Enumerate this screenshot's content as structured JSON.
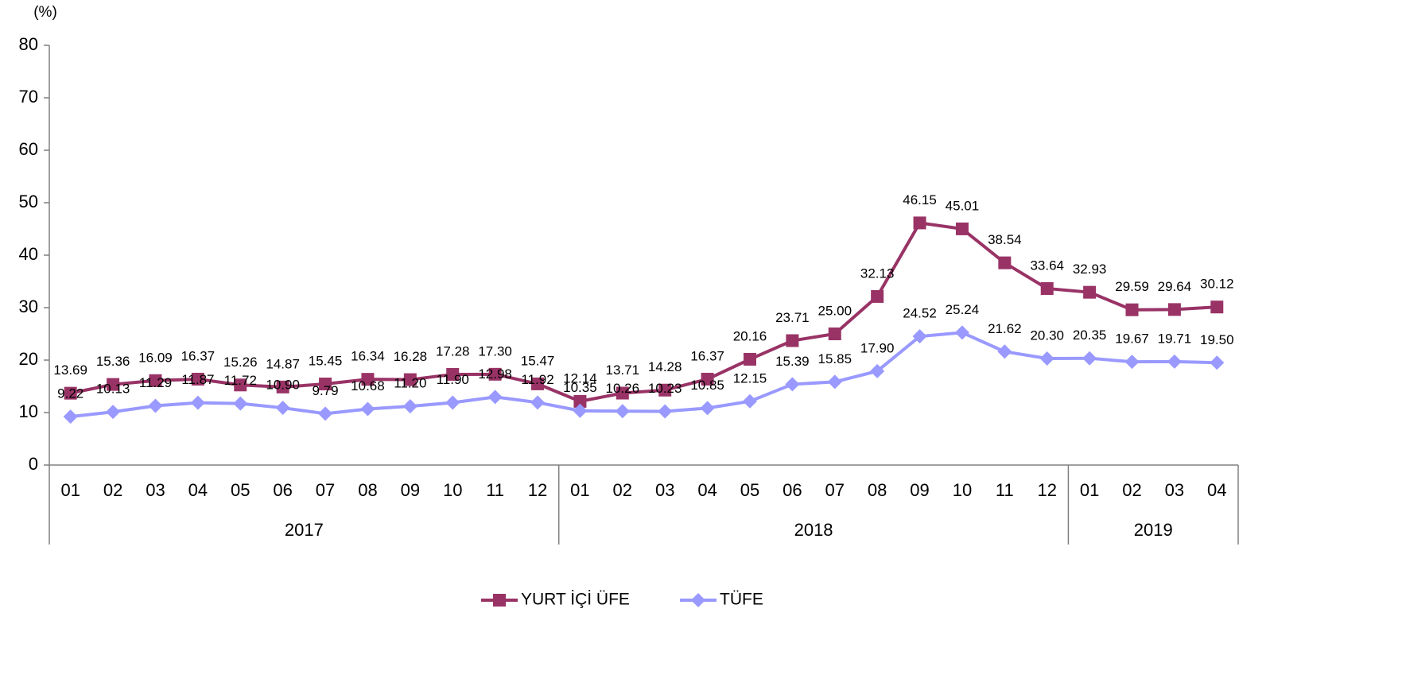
{
  "chart_data": {
    "type": "line",
    "y_axis_label": "(%)",
    "categories": [
      "01",
      "02",
      "03",
      "04",
      "05",
      "06",
      "07",
      "08",
      "09",
      "10",
      "11",
      "12",
      "01",
      "02",
      "03",
      "04",
      "05",
      "06",
      "07",
      "08",
      "09",
      "10",
      "11",
      "12",
      "01",
      "02",
      "03",
      "04"
    ],
    "x_groups": [
      "2017",
      "2018",
      "2019"
    ],
    "ylim": [
      0,
      80
    ],
    "yticks": [
      0,
      10,
      20,
      30,
      40,
      50,
      60,
      70,
      80
    ],
    "legend": "bottom",
    "series": [
      {
        "name": "YURT İÇİ ÜFE",
        "color": "#993366",
        "marker": "square",
        "values": [
          13.69,
          15.36,
          16.09,
          16.37,
          15.26,
          14.87,
          15.45,
          16.34,
          16.28,
          17.28,
          17.3,
          15.47,
          12.14,
          13.71,
          14.28,
          16.37,
          20.16,
          23.71,
          25.0,
          32.13,
          46.15,
          45.01,
          38.54,
          33.64,
          32.93,
          29.59,
          29.64,
          30.12
        ],
        "value_labels": [
          "13.69",
          "15.36",
          "16.09",
          "16.37",
          "15.26",
          "14.87",
          "15.45",
          "16.34",
          "16.28",
          "17.28",
          "17.30",
          "15.47",
          "12.14",
          "13.71",
          "14.28",
          "16.37",
          "20.16",
          "23.71",
          "25.00",
          "32.13",
          "46.15",
          "45.01",
          "38.54",
          "33.64",
          "32.93",
          "29.59",
          "29.64",
          "30.12"
        ]
      },
      {
        "name": "TÜFE",
        "color": "#9999ff",
        "marker": "diamond",
        "values": [
          9.22,
          10.13,
          11.29,
          11.87,
          11.72,
          10.9,
          9.79,
          10.68,
          11.2,
          11.9,
          12.98,
          11.92,
          10.35,
          10.26,
          10.23,
          10.85,
          12.15,
          15.39,
          15.85,
          17.9,
          24.52,
          25.24,
          21.62,
          20.3,
          20.35,
          19.67,
          19.71,
          19.5
        ],
        "value_labels": [
          "9.22",
          "10.13",
          "11.29",
          "11.87",
          "11.72",
          "10.90",
          "9.79",
          "10.68",
          "11.20",
          "11.90",
          "12.98",
          "11.92",
          "10.35",
          "10.26",
          "10.23",
          "10.85",
          "12.15",
          "15.39",
          "15.85",
          "17.90",
          "24.52",
          "25.24",
          "21.62",
          "20.30",
          "20.35",
          "19.67",
          "19.71",
          "19.50"
        ]
      }
    ]
  }
}
